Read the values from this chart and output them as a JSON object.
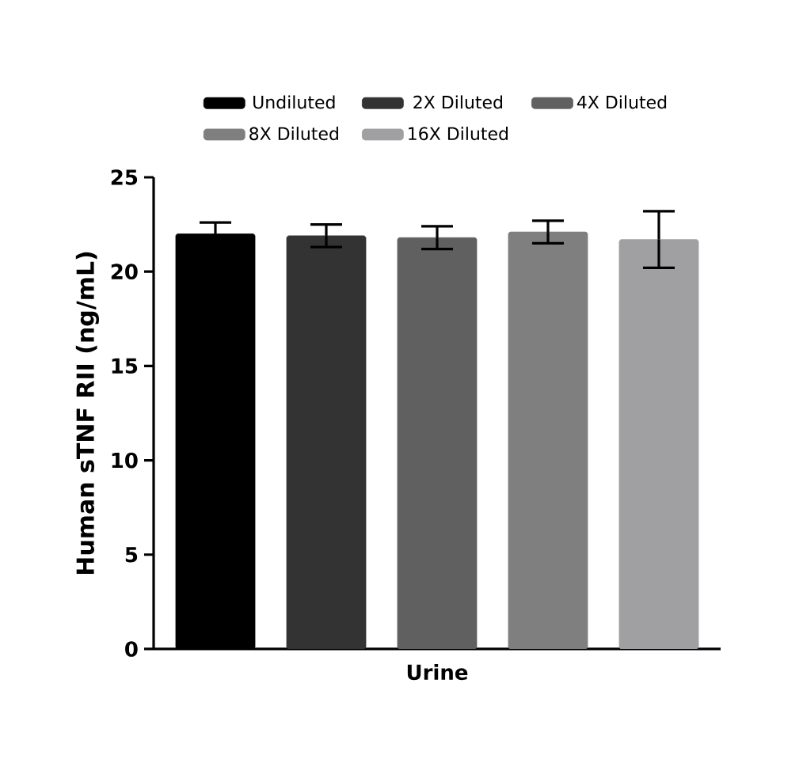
{
  "chart_data": {
    "type": "bar",
    "ylabel": "Human sTNF RII (ng/mL)",
    "categories": [
      "Urine"
    ],
    "series": [
      {
        "name": "Undiluted",
        "color": "#000000",
        "values": [
          22.0
        ],
        "errors": [
          0.6
        ]
      },
      {
        "name": "2X Diluted",
        "color": "#333333",
        "values": [
          21.9
        ],
        "errors": [
          0.6
        ]
      },
      {
        "name": "4X Diluted",
        "color": "#606060",
        "values": [
          21.8
        ],
        "errors": [
          0.6
        ]
      },
      {
        "name": "8X Diluted",
        "color": "#7f7f7f",
        "values": [
          22.1
        ],
        "errors": [
          0.6
        ]
      },
      {
        "name": "16X Diluted",
        "color": "#a0a0a2",
        "values": [
          21.7
        ],
        "errors": [
          1.5
        ]
      }
    ],
    "ylim": [
      0,
      25
    ],
    "yticks": [
      0,
      5,
      10,
      15,
      20,
      25
    ],
    "legend": "top",
    "grid": false
  }
}
